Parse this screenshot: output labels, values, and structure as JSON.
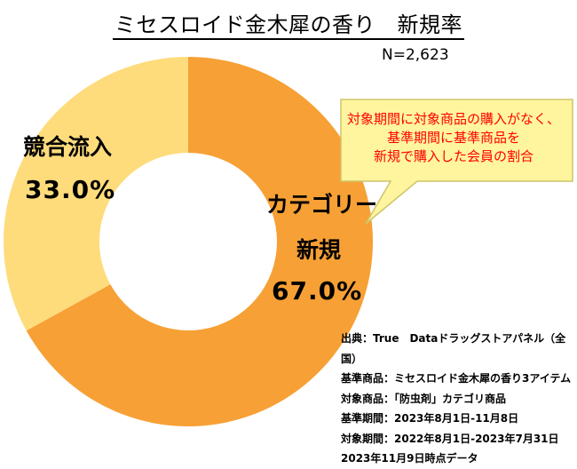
{
  "chart_data": {
    "type": "pie",
    "title": "ミセスロイド金木犀の香り　新規率",
    "sample": "N=2,623",
    "slices": [
      {
        "label_line1": "カテゴリー",
        "label_line2": "新規",
        "value": 67.0,
        "value_label": "67.0%",
        "color": "#f7a035"
      },
      {
        "label_line1": "競合流入",
        "label_line2": "",
        "value": 33.0,
        "value_label": "33.0%",
        "color": "#fedc7c"
      }
    ],
    "annotation": [
      "対象期間に対象商品の購入がなく、",
      "基準期間に基準商品を",
      "新規で購入した会員の割合"
    ]
  },
  "source_notes": [
    "出典：True　Dataドラッグストアパネル（全国）",
    "基準商品：ミセスロイド金木犀の香り3アイテム",
    "対象商品：「防虫剤」カテゴリ商品",
    "基準期間：2023年8月1日-11月8日",
    "対象期間：2022年8月1日-2023年7月31日",
    "2023年11月9日時点データ"
  ],
  "colors": {
    "accent_text": "#ff0000",
    "callout_fill": "#fff59e",
    "callout_border": "#cfc46a"
  }
}
